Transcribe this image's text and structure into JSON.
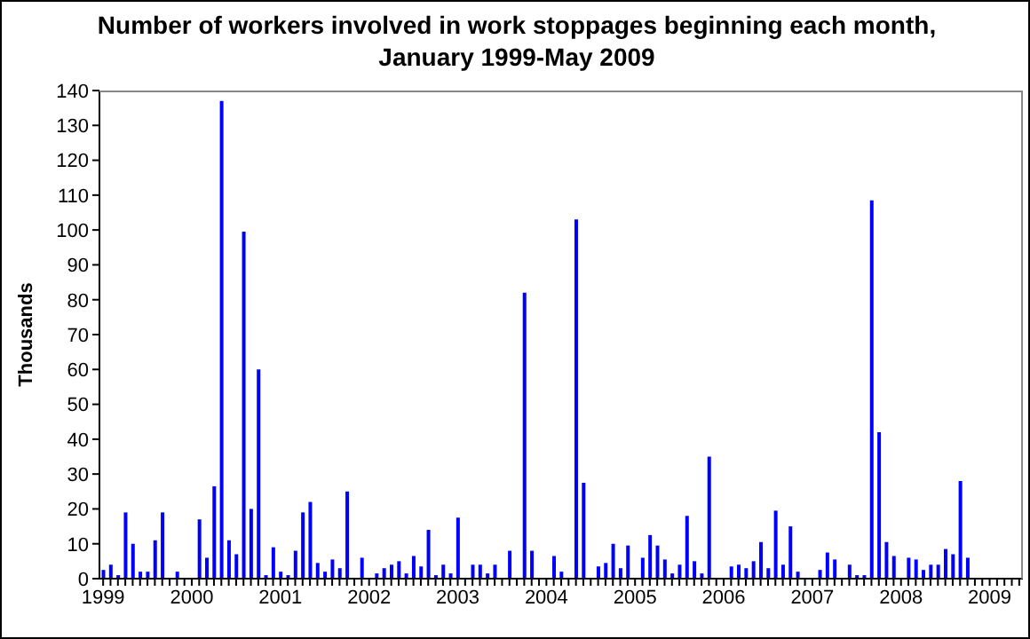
{
  "chart_data": {
    "type": "bar",
    "title": "Number of workers involved in work stoppages beginning each month, January 1999-May 2009",
    "ylabel": "Thousands",
    "categories": [
      "1999",
      null,
      null,
      null,
      null,
      null,
      null,
      null,
      null,
      null,
      null,
      null,
      "2000",
      null,
      null,
      null,
      null,
      null,
      null,
      null,
      null,
      null,
      null,
      null,
      "2001",
      null,
      null,
      null,
      null,
      null,
      null,
      null,
      null,
      null,
      null,
      null,
      "2002",
      null,
      null,
      null,
      null,
      null,
      null,
      null,
      null,
      null,
      null,
      null,
      "2003",
      null,
      null,
      null,
      null,
      null,
      null,
      null,
      null,
      null,
      null,
      null,
      "2004",
      null,
      null,
      null,
      null,
      null,
      null,
      null,
      null,
      null,
      null,
      null,
      "2005",
      null,
      null,
      null,
      null,
      null,
      null,
      null,
      null,
      null,
      null,
      null,
      "2006",
      null,
      null,
      null,
      null,
      null,
      null,
      null,
      null,
      null,
      null,
      null,
      "2007",
      null,
      null,
      null,
      null,
      null,
      null,
      null,
      null,
      null,
      null,
      null,
      "2008",
      null,
      null,
      null,
      null,
      null,
      null,
      null,
      null,
      null,
      null,
      null,
      "2009",
      null,
      null,
      null,
      null
    ],
    "values": [
      2.5,
      4,
      1,
      19,
      10,
      2,
      2,
      11,
      19,
      0,
      2,
      0,
      0,
      17,
      6,
      26.5,
      137,
      11,
      7,
      99.5,
      20,
      60,
      1,
      9,
      2,
      1,
      8,
      19,
      22,
      4.5,
      2,
      5.5,
      3,
      25,
      0,
      6,
      0,
      1.5,
      3,
      4,
      5,
      1.5,
      6.5,
      3.5,
      14,
      1,
      4,
      1.5,
      17.5,
      0,
      4,
      4,
      1.5,
      4,
      0,
      8,
      0,
      82,
      8,
      0,
      0,
      6.5,
      2,
      0,
      103,
      27.5,
      0,
      3.5,
      4.5,
      10,
      3,
      9.5,
      0,
      6,
      12.5,
      9.5,
      5.5,
      1.5,
      4,
      18,
      5,
      1.5,
      35,
      0,
      0,
      3.5,
      4,
      3,
      5,
      10.5,
      3,
      19.5,
      4,
      15,
      2,
      0,
      0,
      2.5,
      7.5,
      5.5,
      0,
      4,
      1,
      1,
      108.5,
      42,
      10.5,
      6.5,
      0,
      6,
      5.5,
      2.5,
      4,
      4,
      8.5,
      7,
      28,
      6,
      0,
      0,
      0,
      0,
      0,
      0,
      0
    ],
    "color": "#0000ff",
    "ylim": [
      0,
      140
    ],
    "yticks": [
      0,
      10,
      20,
      30,
      40,
      50,
      60,
      70,
      80,
      90,
      100,
      110,
      120,
      130,
      140
    ],
    "grid": false,
    "legend": false
  }
}
